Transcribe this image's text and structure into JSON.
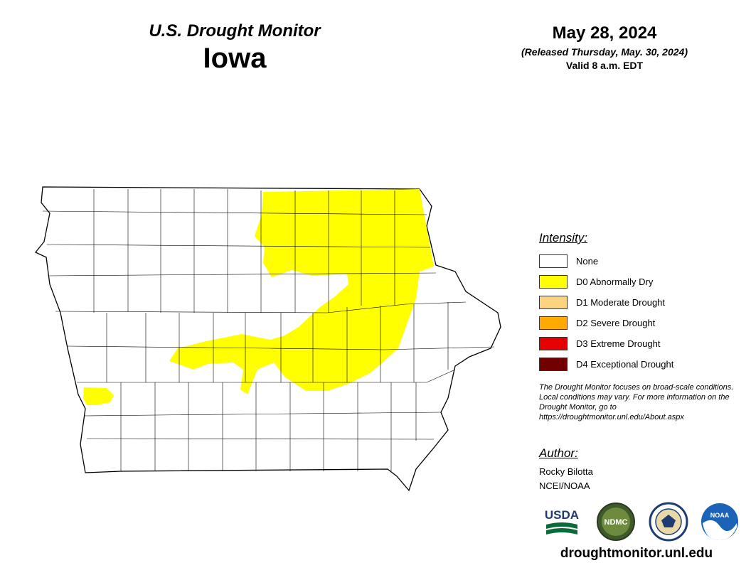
{
  "header": {
    "title": "U.S. Drought Monitor",
    "state": "Iowa",
    "date": "May 28, 2024",
    "released": "(Released Thursday, May. 30, 2024)",
    "valid": "Valid 8 a.m. EDT"
  },
  "map": {
    "base_color": "#ffffff",
    "border_color": "#000000",
    "drought_areas": [
      {
        "category": "D0",
        "color": "#ffff00",
        "region": "northeast-central Iowa"
      },
      {
        "category": "D0",
        "color": "#ffff00",
        "region": "southwest Iowa (Mills/Fremont)"
      }
    ]
  },
  "legend": {
    "heading": "Intensity:",
    "items": [
      {
        "label": "None",
        "color": "#ffffff"
      },
      {
        "label": "D0 Abnormally Dry",
        "color": "#ffff00"
      },
      {
        "label": "D1 Moderate Drought",
        "color": "#fcd37f"
      },
      {
        "label": "D2 Severe Drought",
        "color": "#ffaa00"
      },
      {
        "label": "D3 Extreme Drought",
        "color": "#e60000"
      },
      {
        "label": "D4 Exceptional Drought",
        "color": "#730000"
      }
    ]
  },
  "disclaimer": "The Drought Monitor focuses on broad-scale conditions. Local conditions may vary. For more information on the Drought Monitor, go to https://droughtmonitor.unl.edu/About.aspx",
  "author": {
    "heading": "Author:",
    "name": "Rocky Bilotta",
    "org": "NCEI/NOAA"
  },
  "logos": [
    {
      "name": "usda-logo",
      "text": "USDA"
    },
    {
      "name": "ndmc-logo",
      "text": "NDMC"
    },
    {
      "name": "doc-seal-logo",
      "text": ""
    },
    {
      "name": "noaa-logo",
      "text": "NOAA"
    }
  ],
  "site_url": "droughtmonitor.unl.edu"
}
